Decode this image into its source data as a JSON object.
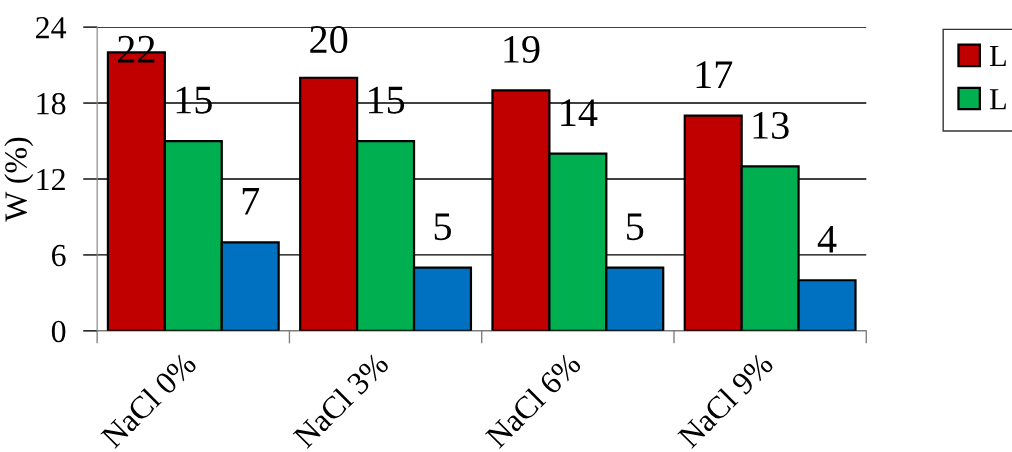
{
  "chart_data": {
    "type": "bar",
    "ylabel": "W (%)",
    "categories": [
      "NaCl 0%",
      "NaCl 3%",
      "NaCl 6%",
      "NaCl 9%"
    ],
    "series": [
      {
        "name": "L",
        "color": "#c00000",
        "values": [
          22,
          20,
          19,
          17
        ]
      },
      {
        "name": "L",
        "color": "#00b050",
        "values": [
          15,
          15,
          14,
          13
        ]
      },
      {
        "color": "#0070c0",
        "values": [
          7,
          5,
          5,
          4
        ]
      }
    ],
    "ylim": [
      0,
      24
    ],
    "yticks": [
      0,
      6,
      12,
      18,
      24
    ],
    "grid": "y",
    "legend": "top right",
    "data_labels": true
  }
}
